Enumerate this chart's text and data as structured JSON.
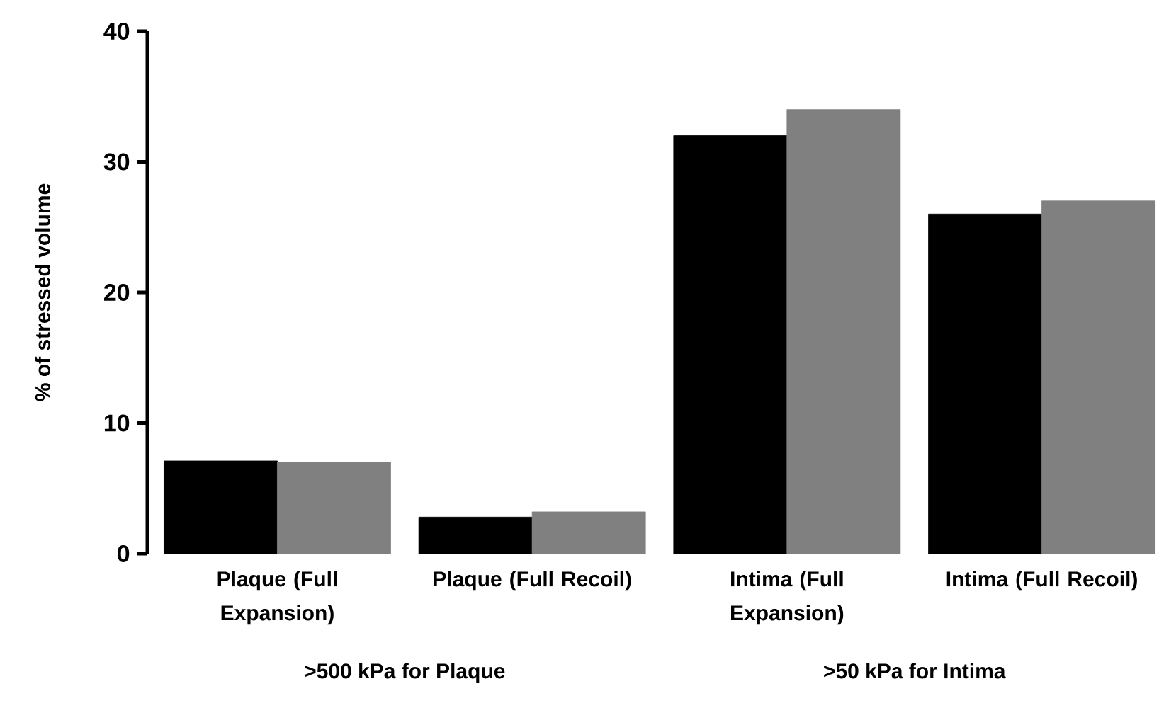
{
  "chart_data": {
    "type": "bar",
    "ylabel": "% of stressed volume",
    "categories": [
      "Plaque (Full Expansion)",
      "Plaque (Full Recoil)",
      "Intima (Full Expansion)",
      "Intima (Full Recoil)"
    ],
    "series": [
      {
        "color": "#000000",
        "values": [
          7.1,
          2.8,
          32,
          26
        ]
      },
      {
        "color": "#808080",
        "values": [
          7.0,
          3.2,
          34,
          27
        ]
      }
    ],
    "ylim": [
      0,
      40
    ],
    "yticks": [
      0,
      10,
      20,
      30,
      40
    ],
    "annotations": [
      ">500 kPa for Plaque",
      ">50 kPa for Intima"
    ]
  }
}
